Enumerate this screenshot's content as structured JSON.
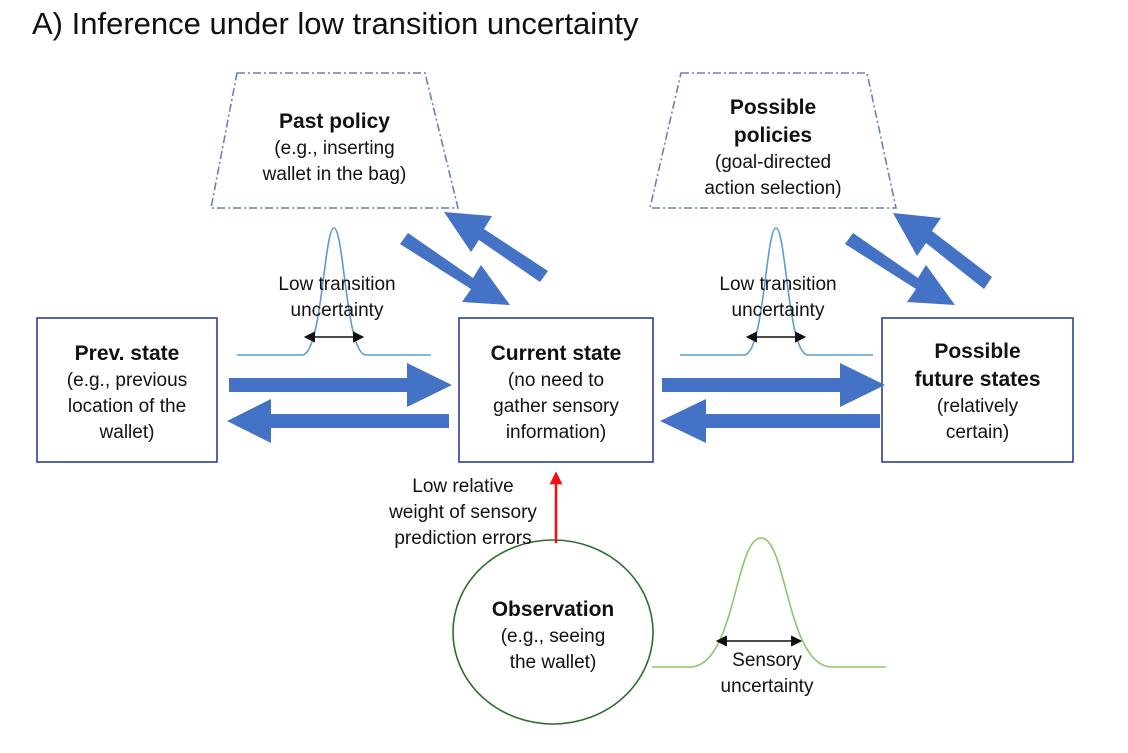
{
  "title": "A) Inference under low transition uncertainty",
  "nodes": {
    "prev_state": {
      "heading": "Prev. state",
      "lines": [
        "(e.g., previous",
        "location of the",
        "wallet)"
      ]
    },
    "current_state": {
      "heading": "Current state",
      "lines": [
        "(no need to",
        "gather sensory",
        "information)"
      ]
    },
    "future_states": {
      "heading_lines": [
        "Possible",
        "future states"
      ],
      "lines": [
        "(relatively",
        "certain)"
      ]
    },
    "past_policy": {
      "heading": "Past policy",
      "lines": [
        "(e.g., inserting",
        "wallet in the bag)"
      ]
    },
    "possible_policies": {
      "heading_lines": [
        "Possible",
        "policies"
      ],
      "lines": [
        "(goal-directed",
        "action selection)"
      ]
    },
    "observation": {
      "heading": "Observation",
      "lines": [
        "(e.g., seeing",
        "the wallet)"
      ]
    }
  },
  "annotations": {
    "transition_left": [
      "Low transition",
      "uncertainty"
    ],
    "transition_right": [
      "Low transition",
      "uncertainty"
    ],
    "sensory_weight": [
      "Low relative",
      "weight of sensory",
      "prediction errors"
    ],
    "sensory_uncertainty": [
      "Sensory",
      "uncertainty"
    ]
  },
  "colors": {
    "box_border": "#2f3f8f",
    "arrow_blue": "#4472c4",
    "curve_blue": "#5b9bd5",
    "curve_green": "#8cc66b",
    "circle_green": "#2e6b2e",
    "dashed_border": "#6a7fbf",
    "red_arrow": "#ee1111"
  }
}
